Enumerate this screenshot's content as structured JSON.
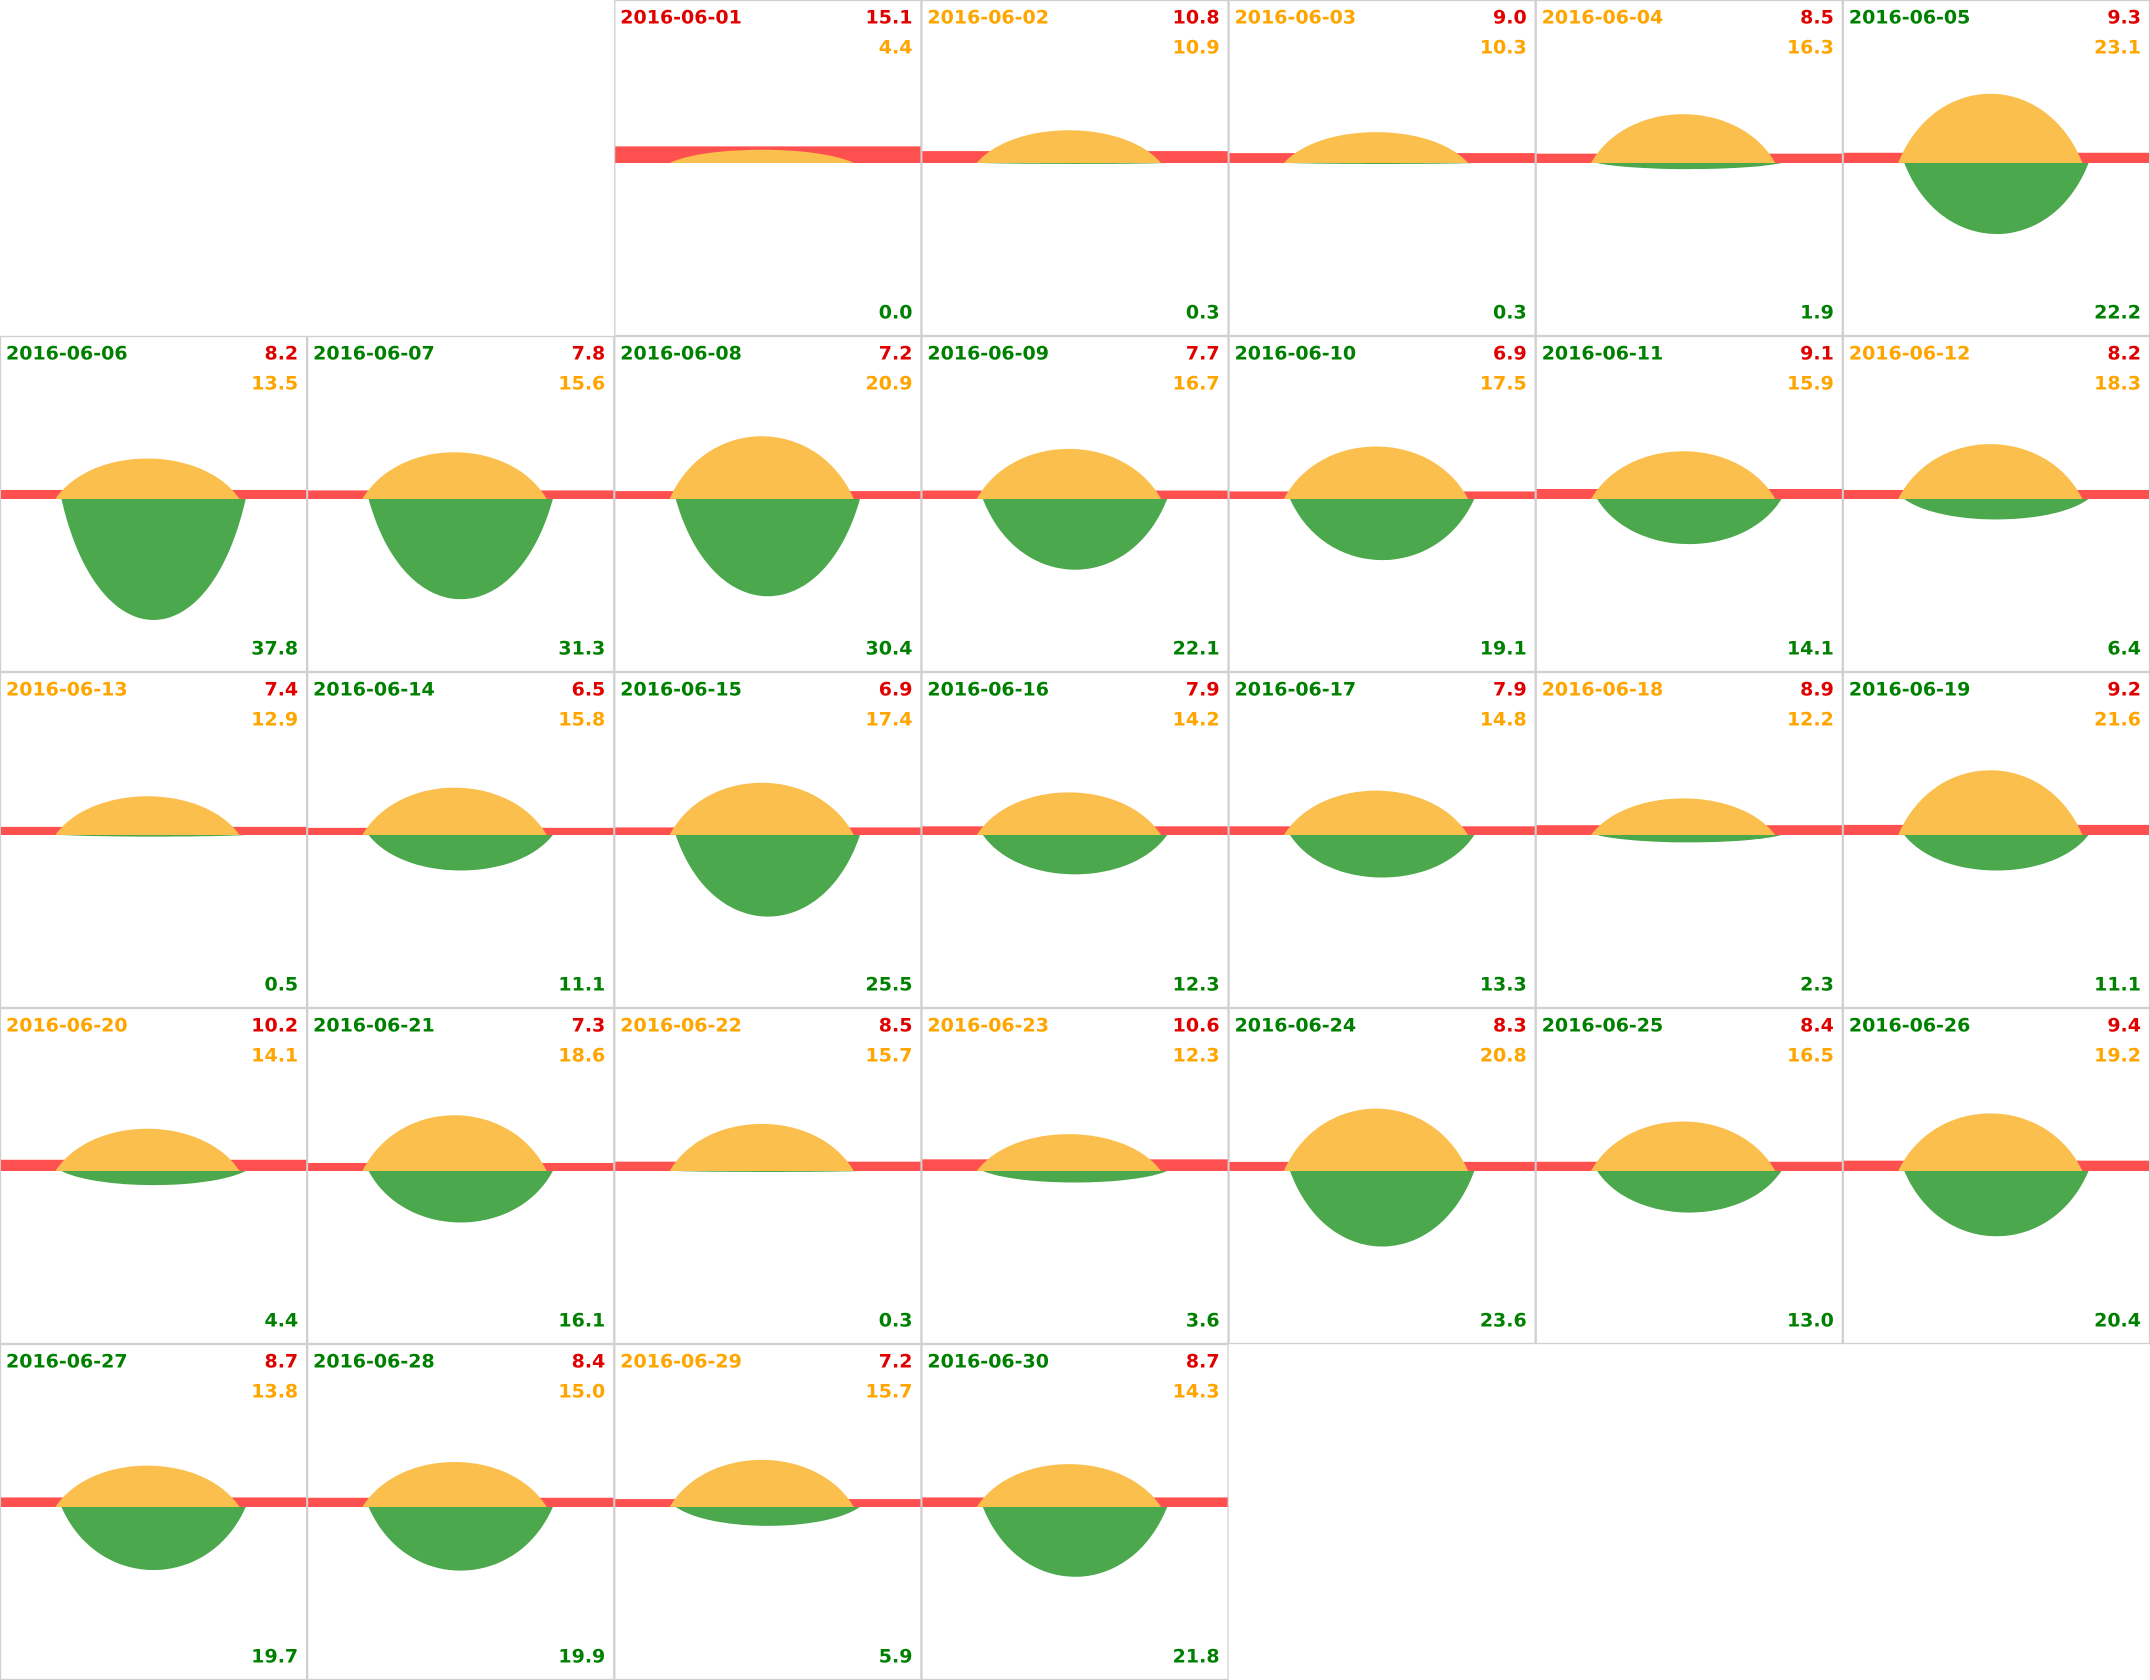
{
  "days": [
    {
      "date": "2016-06-01",
      "color": "#e00000",
      "values": [
        15.1,
        4.4,
        0.0
      ],
      "value_labels": [
        "15.1",
        "4.4",
        "0.0"
      ]
    },
    {
      "date": "2016-06-02",
      "color": "#ffa500",
      "values": [
        10.8,
        10.9,
        0.3
      ],
      "value_labels": [
        "10.8",
        "10.9",
        "0.3"
      ]
    },
    {
      "date": "2016-06-03",
      "color": "#ffa500",
      "values": [
        9.0,
        10.3,
        0.3
      ],
      "value_labels": [
        "9.0",
        "10.3",
        "0.3"
      ]
    },
    {
      "date": "2016-06-04",
      "color": "#ffa500",
      "values": [
        8.5,
        16.3,
        1.9
      ],
      "value_labels": [
        "8.5",
        "16.3",
        "1.9"
      ]
    },
    {
      "date": "2016-06-05",
      "color": "#008000",
      "values": [
        9.3,
        23.1,
        22.2
      ],
      "value_labels": [
        "9.3",
        "23.1",
        "22.2"
      ]
    },
    {
      "date": "2016-06-06",
      "color": "#008000",
      "values": [
        8.2,
        13.5,
        37.8
      ],
      "value_labels": [
        "8.2",
        "13.5",
        "37.8"
      ]
    },
    {
      "date": "2016-06-07",
      "color": "#008000",
      "values": [
        7.8,
        15.6,
        31.3
      ],
      "value_labels": [
        "7.8",
        "15.6",
        "31.3"
      ]
    },
    {
      "date": "2016-06-08",
      "color": "#008000",
      "values": [
        7.2,
        20.9,
        30.4
      ],
      "value_labels": [
        "7.2",
        "20.9",
        "30.4"
      ]
    },
    {
      "date": "2016-06-09",
      "color": "#008000",
      "values": [
        7.7,
        16.7,
        22.1
      ],
      "value_labels": [
        "7.7",
        "16.7",
        "22.1"
      ]
    },
    {
      "date": "2016-06-10",
      "color": "#008000",
      "values": [
        6.9,
        17.5,
        19.1
      ],
      "value_labels": [
        "6.9",
        "17.5",
        "19.1"
      ]
    },
    {
      "date": "2016-06-11",
      "color": "#008000",
      "values": [
        9.1,
        15.9,
        14.1
      ],
      "value_labels": [
        "9.1",
        "15.9",
        "14.1"
      ]
    },
    {
      "date": "2016-06-12",
      "color": "#ffa500",
      "values": [
        8.2,
        18.3,
        6.4
      ],
      "value_labels": [
        "8.2",
        "18.3",
        "6.4"
      ]
    },
    {
      "date": "2016-06-13",
      "color": "#ffa500",
      "values": [
        7.4,
        12.9,
        0.5
      ],
      "value_labels": [
        "7.4",
        "12.9",
        "0.5"
      ]
    },
    {
      "date": "2016-06-14",
      "color": "#008000",
      "values": [
        6.5,
        15.8,
        11.1
      ],
      "value_labels": [
        "6.5",
        "15.8",
        "11.1"
      ]
    },
    {
      "date": "2016-06-15",
      "color": "#008000",
      "values": [
        6.9,
        17.4,
        25.5
      ],
      "value_labels": [
        "6.9",
        "17.4",
        "25.5"
      ]
    },
    {
      "date": "2016-06-16",
      "color": "#008000",
      "values": [
        7.9,
        14.2,
        12.3
      ],
      "value_labels": [
        "7.9",
        "14.2",
        "12.3"
      ]
    },
    {
      "date": "2016-06-17",
      "color": "#008000",
      "values": [
        7.9,
        14.8,
        13.3
      ],
      "value_labels": [
        "7.9",
        "14.8",
        "13.3"
      ]
    },
    {
      "date": "2016-06-18",
      "color": "#ffa500",
      "values": [
        8.9,
        12.2,
        2.3
      ],
      "value_labels": [
        "8.9",
        "12.2",
        "2.3"
      ]
    },
    {
      "date": "2016-06-19",
      "color": "#008000",
      "values": [
        9.2,
        21.6,
        11.1
      ],
      "value_labels": [
        "9.2",
        "21.6",
        "11.1"
      ]
    },
    {
      "date": "2016-06-20",
      "color": "#ffa500",
      "values": [
        10.2,
        14.1,
        4.4
      ],
      "value_labels": [
        "10.2",
        "14.1",
        "4.4"
      ]
    },
    {
      "date": "2016-06-21",
      "color": "#008000",
      "values": [
        7.3,
        18.6,
        16.1
      ],
      "value_labels": [
        "7.3",
        "18.6",
        "16.1"
      ]
    },
    {
      "date": "2016-06-22",
      "color": "#ffa500",
      "values": [
        8.5,
        15.7,
        0.3
      ],
      "value_labels": [
        "8.5",
        "15.7",
        "0.3"
      ]
    },
    {
      "date": "2016-06-23",
      "color": "#ffa500",
      "values": [
        10.6,
        12.3,
        3.6
      ],
      "value_labels": [
        "10.6",
        "12.3",
        "3.6"
      ]
    },
    {
      "date": "2016-06-24",
      "color": "#008000",
      "values": [
        8.3,
        20.8,
        23.6
      ],
      "value_labels": [
        "8.3",
        "20.8",
        "23.6"
      ]
    },
    {
      "date": "2016-06-25",
      "color": "#008000",
      "values": [
        8.4,
        16.5,
        13.0
      ],
      "value_labels": [
        "8.4",
        "16.5",
        "13.0"
      ]
    },
    {
      "date": "2016-06-26",
      "color": "#008000",
      "values": [
        9.4,
        19.2,
        20.4
      ],
      "value_labels": [
        "9.4",
        "19.2",
        "20.4"
      ]
    },
    {
      "date": "2016-06-27",
      "color": "#008000",
      "values": [
        8.7,
        13.8,
        19.7
      ],
      "value_labels": [
        "8.7",
        "13.8",
        "19.7"
      ]
    },
    {
      "date": "2016-06-28",
      "color": "#008000",
      "values": [
        8.4,
        15.0,
        19.9
      ],
      "value_labels": [
        "8.4",
        "15.0",
        "19.9"
      ]
    },
    {
      "date": "2016-06-29",
      "color": "#ffa500",
      "values": [
        7.2,
        15.7,
        5.9
      ],
      "value_labels": [
        "7.2",
        "15.7",
        "5.9"
      ]
    },
    {
      "date": "2016-06-30",
      "color": "#008000",
      "values": [
        8.7,
        14.3,
        21.8
      ],
      "value_labels": [
        "8.7",
        "14.3",
        "21.8"
      ]
    }
  ]
}
